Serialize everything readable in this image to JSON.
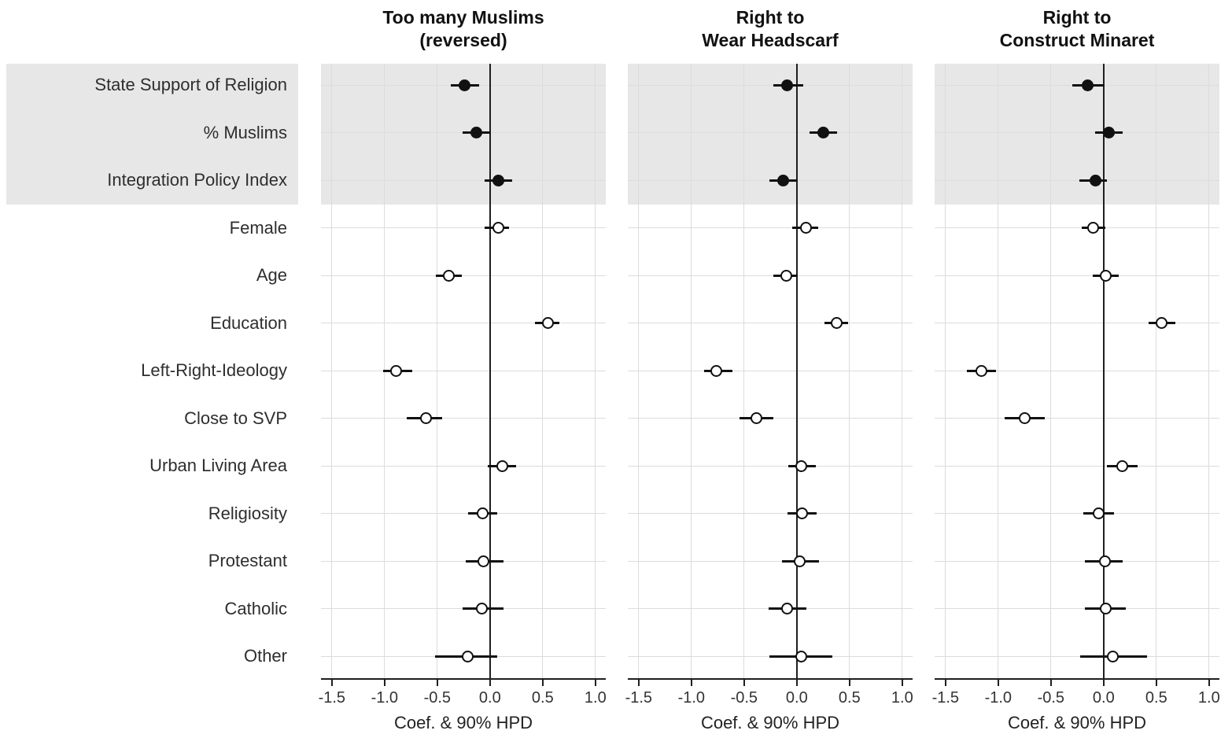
{
  "chart_data": {
    "type": "forest",
    "description": "Three-panel coefficient (forest) plot with point estimates and 90% highest posterior density intervals",
    "xlabel": "Coef. & 90% HPD",
    "xlim": [
      -1.6,
      1.1
    ],
    "x_ticks": [
      -1.5,
      -1.0,
      -0.5,
      0.0,
      0.5,
      1.0
    ],
    "x_tick_labels": [
      "-1.5",
      "-1.0",
      "-0.5",
      "0.0",
      "0.5",
      "1.0"
    ],
    "grid": true,
    "categories": [
      "State Support of Religion",
      "% Muslims",
      "Integration Policy Index",
      "Female",
      "Age",
      "Education",
      "Left-Right-Ideology",
      "Close to SVP",
      "Urban Living Area",
      "Religiosity",
      "Protestant",
      "Catholic",
      "Other"
    ],
    "shaded_rows": [
      0,
      1,
      2
    ],
    "filled_marker_rows": [
      0,
      1,
      2
    ],
    "open_marker_rows": [
      3,
      4,
      5,
      6,
      7,
      8,
      9,
      10,
      11,
      12
    ],
    "panels": [
      {
        "title": [
          "Too many Muslims",
          "(reversed)"
        ],
        "est": [
          -0.24,
          -0.13,
          0.08,
          0.08,
          -0.39,
          0.55,
          -0.89,
          -0.61,
          0.12,
          -0.07,
          -0.06,
          -0.08,
          -0.21
        ],
        "lo": [
          -0.37,
          -0.26,
          -0.05,
          -0.05,
          -0.51,
          0.43,
          -1.01,
          -0.79,
          -0.02,
          -0.21,
          -0.23,
          -0.26,
          -0.52
        ],
        "hi": [
          -0.1,
          0.0,
          0.21,
          0.18,
          -0.27,
          0.66,
          -0.74,
          -0.45,
          0.25,
          0.07,
          0.13,
          0.13,
          0.07
        ]
      },
      {
        "title": [
          "Right to",
          "Wear Headscarf"
        ],
        "est": [
          -0.09,
          0.25,
          -0.13,
          0.09,
          -0.1,
          0.38,
          -0.76,
          -0.38,
          0.04,
          0.05,
          0.03,
          -0.09,
          0.04
        ],
        "lo": [
          -0.22,
          0.12,
          -0.26,
          -0.04,
          -0.22,
          0.26,
          -0.88,
          -0.54,
          -0.08,
          -0.09,
          -0.14,
          -0.27,
          -0.26
        ],
        "hi": [
          0.06,
          0.38,
          0.0,
          0.2,
          0.01,
          0.49,
          -0.61,
          -0.22,
          0.18,
          0.19,
          0.21,
          0.09,
          0.34
        ]
      },
      {
        "title": [
          "Right to",
          "Construct Minaret"
        ],
        "est": [
          -0.15,
          0.05,
          -0.08,
          -0.1,
          0.02,
          0.55,
          -1.16,
          -0.75,
          0.18,
          -0.05,
          0.01,
          0.02,
          0.09
        ],
        "lo": [
          -0.3,
          -0.08,
          -0.23,
          -0.21,
          -0.1,
          0.43,
          -1.3,
          -0.94,
          0.03,
          -0.19,
          -0.18,
          -0.18,
          -0.22
        ],
        "hi": [
          0.0,
          0.18,
          0.03,
          0.02,
          0.14,
          0.68,
          -1.02,
          -0.56,
          0.32,
          0.1,
          0.18,
          0.21,
          0.41
        ]
      }
    ],
    "colors": {
      "background": "#ffffff",
      "shaded_band": "#e7e7e7",
      "gridline": "#dcdcdc",
      "zero_line": "#1f1f1f",
      "axis_line": "#1f1f1f",
      "marker": "#111111",
      "open_marker_fill": "#ffffff",
      "ci_line": "#111111",
      "text": "#2e2e2e"
    }
  }
}
